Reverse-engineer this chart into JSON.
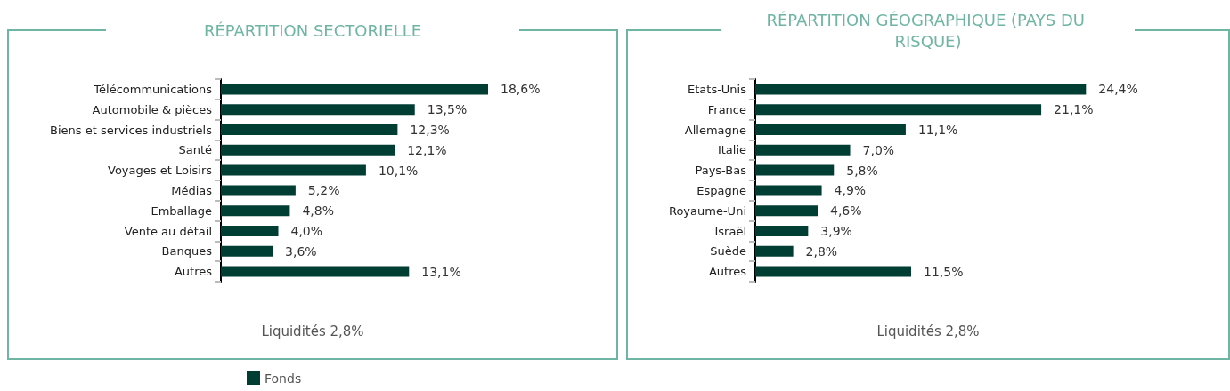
{
  "chart_data": [
    {
      "type": "bar",
      "orientation": "horizontal",
      "title": "RÉPARTITION SECTORIELLE",
      "categories": [
        "Télécommunications",
        "Automobile & pièces",
        "Biens et services industriels",
        "Santé",
        "Voyages et Loisirs",
        "Médias",
        "Emballage",
        "Vente au détail",
        "Banques",
        "Autres"
      ],
      "series": [
        {
          "name": "Fonds",
          "color": "#003d32",
          "values": [
            18.6,
            13.5,
            12.3,
            12.1,
            10.1,
            5.2,
            4.8,
            4.0,
            3.6,
            13.1
          ],
          "value_labels": [
            "18,6%",
            "13,5%",
            "12,3%",
            "12,1%",
            "10,1%",
            "5,2%",
            "4,8%",
            "4,0%",
            "3,6%",
            "13,1%"
          ]
        }
      ],
      "annotations": [
        "Liquidités 2,8%"
      ],
      "legend": "bottom"
    },
    {
      "type": "bar",
      "orientation": "horizontal",
      "title": "RÉPARTITION GÉOGRAPHIQUE (PAYS DU RISQUE)",
      "categories": [
        "Etats-Unis",
        "France",
        "Allemagne",
        "Italie",
        "Pays-Bas",
        "Espagne",
        "Royaume-Uni",
        "Israël",
        "Suède",
        "Autres"
      ],
      "series": [
        {
          "color": "#003d32",
          "values": [
            24.4,
            21.1,
            11.1,
            7.0,
            5.8,
            4.9,
            4.6,
            3.9,
            2.8,
            11.5
          ],
          "value_labels": [
            "24,4%",
            "21,1%",
            "11,1%",
            "7,0%",
            "5,8%",
            "4,9%",
            "4,6%",
            "3,9%",
            "2,8%",
            "11,5%"
          ]
        }
      ],
      "annotations": [
        "Liquidités 2,8%"
      ]
    }
  ]
}
